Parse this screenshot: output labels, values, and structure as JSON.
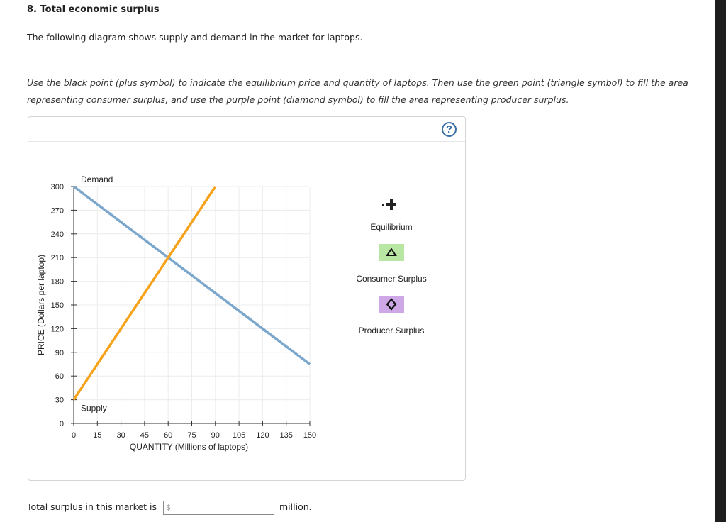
{
  "question": {
    "title": "8. Total economic surplus",
    "intro": "The following diagram shows supply and demand in the market for laptops.",
    "instructions": "Use the black point (plus symbol) to indicate the equilibrium price and quantity of laptops. Then use the green point (triangle symbol) to fill the area representing consumer surplus, and use the purple point (diamond symbol) to fill the area representing producer surplus."
  },
  "help_icon": "?",
  "chart_data": {
    "type": "line",
    "xlabel": "QUANTITY (Millions of laptops)",
    "ylabel": "PRICE (Dollars per laptop)",
    "xlim": [
      0,
      150
    ],
    "ylim": [
      0,
      300
    ],
    "x_ticks": [
      0,
      15,
      30,
      45,
      60,
      75,
      90,
      105,
      120,
      135,
      150
    ],
    "y_ticks": [
      0,
      30,
      60,
      90,
      120,
      150,
      180,
      210,
      240,
      270,
      300
    ],
    "grid": true,
    "series": [
      {
        "name": "Demand",
        "color": "#7ba7cc",
        "points": [
          [
            0,
            300
          ],
          [
            150,
            75
          ]
        ]
      },
      {
        "name": "Supply",
        "color": "#f7a21b",
        "points": [
          [
            0,
            30
          ],
          [
            90,
            300
          ]
        ]
      }
    ]
  },
  "tools": [
    {
      "label": "Equilibrium",
      "icon": "plus-symbol",
      "color": "#222222"
    },
    {
      "label": "Consumer Surplus",
      "icon": "triangle-symbol",
      "color": "#b9e6a3"
    },
    {
      "label": "Producer Surplus",
      "icon": "diamond-symbol",
      "color": "#cda7e6"
    }
  ],
  "answer": {
    "label": "Total surplus in this market is",
    "prefix": "$",
    "value": "",
    "suffix": "million."
  }
}
